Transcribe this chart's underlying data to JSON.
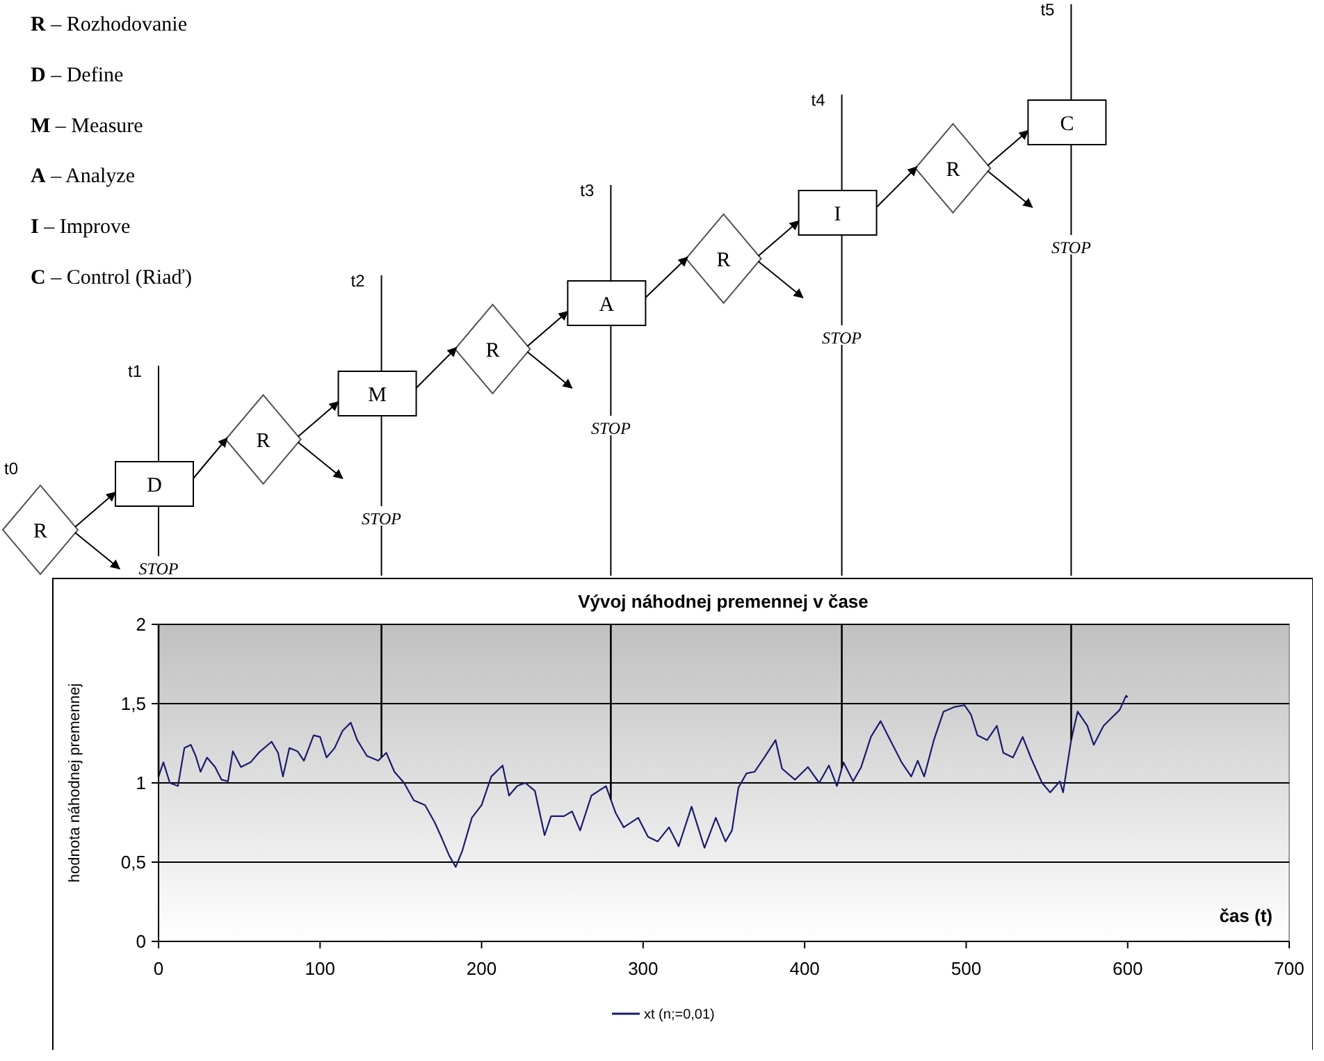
{
  "chart_data": {
    "type": "line",
    "title": "Vývoj náhodnej premennej v čase",
    "xlabel": "čas (t)",
    "ylabel": "hodnota náhodnej premennej",
    "xlim": [
      0,
      700
    ],
    "xticks": [
      0,
      100,
      200,
      300,
      400,
      500,
      600,
      700
    ],
    "ylim": [
      0,
      2
    ],
    "yticks": [
      0,
      {
        "value": 0.5,
        "label": "0,5"
      },
      1,
      {
        "value": 1.5,
        "label": "1,5"
      },
      2
    ],
    "grid": "y",
    "legend": "bottom",
    "marker": "none",
    "line_style": "solid",
    "series": [
      {
        "name": "xt (n;=0,01)",
        "color": "#1a1a6e",
        "x": [
          0,
          3,
          7,
          12,
          16,
          20,
          23,
          26,
          30,
          35,
          39,
          43,
          46,
          51,
          57,
          62,
          70,
          74,
          77,
          81,
          86,
          90,
          96,
          100,
          104,
          109,
          114,
          119,
          123,
          129,
          136,
          141,
          146,
          152,
          158,
          165,
          171,
          175,
          180,
          184,
          188,
          194,
          200,
          206,
          210,
          213,
          217,
          222,
          227,
          233,
          239,
          243,
          251,
          256,
          261,
          268,
          277,
          283,
          288,
          297,
          303,
          309,
          316,
          322,
          330,
          338,
          345,
          351,
          355,
          359,
          364,
          369,
          375,
          382,
          386,
          394,
          402,
          409,
          415,
          420,
          424,
          430,
          435,
          441,
          447,
          452,
          460,
          466,
          470,
          474,
          480,
          486,
          493,
          499,
          503,
          507,
          513,
          519,
          523,
          529,
          535,
          540,
          547,
          552,
          558,
          560,
          565,
          569,
          575,
          579,
          585,
          590,
          595,
          599,
          600
        ],
        "values": [
          1.04,
          1.13,
          1.0,
          0.98,
          1.22,
          1.24,
          1.17,
          1.07,
          1.16,
          1.1,
          1.02,
          1.01,
          1.2,
          1.1,
          1.13,
          1.19,
          1.26,
          1.19,
          1.04,
          1.22,
          1.2,
          1.14,
          1.3,
          1.29,
          1.16,
          1.22,
          1.33,
          1.38,
          1.27,
          1.17,
          1.14,
          1.19,
          1.07,
          1.0,
          0.89,
          0.86,
          0.75,
          0.66,
          0.54,
          0.47,
          0.57,
          0.78,
          0.86,
          1.04,
          1.08,
          1.11,
          0.92,
          0.98,
          1.0,
          0.95,
          0.67,
          0.79,
          0.79,
          0.82,
          0.7,
          0.92,
          0.98,
          0.81,
          0.72,
          0.78,
          0.66,
          0.63,
          0.72,
          0.6,
          0.85,
          0.59,
          0.78,
          0.63,
          0.7,
          0.97,
          1.06,
          1.07,
          1.16,
          1.27,
          1.09,
          1.02,
          1.1,
          1.0,
          1.11,
          0.98,
          1.13,
          1.01,
          1.1,
          1.29,
          1.39,
          1.29,
          1.13,
          1.04,
          1.14,
          1.04,
          1.27,
          1.45,
          1.48,
          1.49,
          1.43,
          1.3,
          1.27,
          1.36,
          1.19,
          1.16,
          1.29,
          1.16,
          1.0,
          0.94,
          1.01,
          0.94,
          1.27,
          1.45,
          1.36,
          1.24,
          1.36,
          1.41,
          1.46,
          1.55,
          1.54
        ]
      }
    ],
    "ref_lines": [
      {
        "axis": "x",
        "value": 0,
        "color": "#000000"
      },
      {
        "axis": "x",
        "value": 138,
        "color": "#000000"
      },
      {
        "axis": "x",
        "value": 280,
        "color": "#000000"
      },
      {
        "axis": "x",
        "value": 423,
        "color": "#000000"
      },
      {
        "axis": "x",
        "value": 565,
        "color": "#000000"
      }
    ],
    "annotations": [
      "R – Rozhodovanie",
      "D – Define",
      "M – Measure",
      "A – Analyze",
      "I – Improve",
      "C – Control (Riaď)",
      "t0",
      "t1",
      "t2",
      "t3",
      "t4",
      "t5",
      "R",
      "D",
      "R",
      "M",
      "R",
      "A",
      "R",
      "I",
      "R",
      "C",
      "STOP",
      "STOP",
      "STOP",
      "STOP",
      "STOP"
    ]
  }
}
